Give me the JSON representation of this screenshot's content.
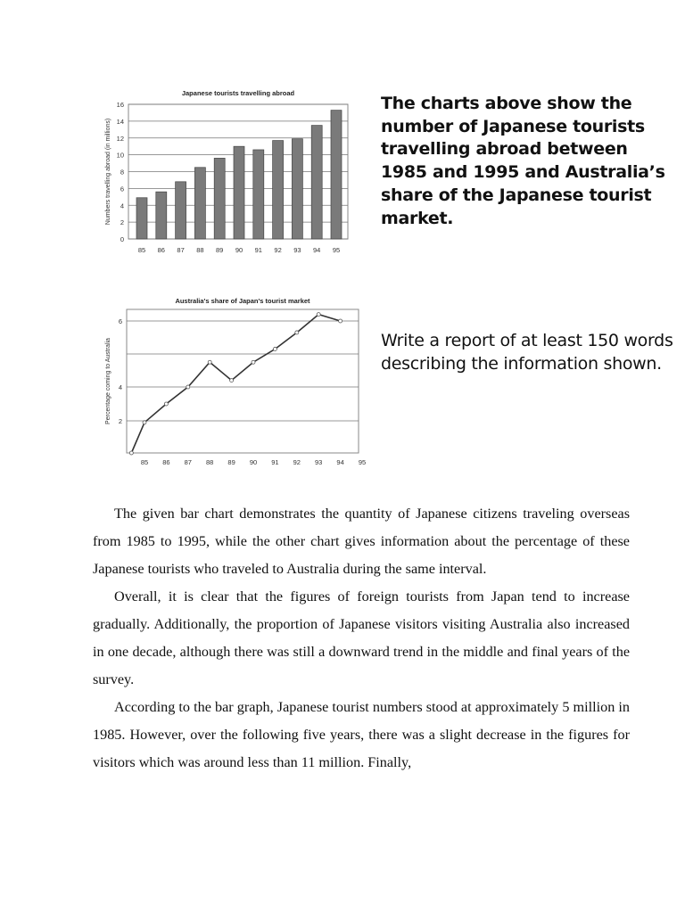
{
  "chart_data": [
    {
      "type": "bar",
      "title": "Japanese tourists travelling abroad",
      "xlabel": "",
      "ylabel": "Numbers travelling abroad (in millions)",
      "categories": [
        "85",
        "86",
        "87",
        "88",
        "89",
        "90",
        "91",
        "92",
        "93",
        "94",
        "95"
      ],
      "values": [
        4.9,
        5.6,
        6.8,
        8.5,
        9.6,
        11.0,
        10.6,
        11.7,
        11.9,
        13.5,
        15.3
      ],
      "ylim": [
        0,
        16
      ],
      "yticks": [
        "0",
        "2",
        "4",
        "6",
        "8",
        "10",
        "12",
        "14",
        "16"
      ],
      "grid": true,
      "colors": {
        "bar": "#7a7a7a"
      }
    },
    {
      "type": "line",
      "title": "Australia's share of Japan's tourist market",
      "xlabel": "",
      "ylabel": "Percentage coming to Australia",
      "x_ticks": [
        "85",
        "86",
        "87",
        "88",
        "89",
        "90",
        "91",
        "92",
        "93",
        "94",
        "95"
      ],
      "x": [
        84.4,
        85,
        86,
        87,
        88,
        89,
        90,
        91,
        92,
        93,
        94
      ],
      "y": [
        1.0,
        1.95,
        3.0,
        4.0,
        4.75,
        4.2,
        4.75,
        5.15,
        5.65,
        6.2,
        6.0
      ],
      "yticks": [
        "2",
        "4",
        "6"
      ],
      "grid": true
    }
  ],
  "task": {
    "heading": "The charts above show the number of Japanese tourists travelling abroad between 1985 and 1995 and Australia’s share of the Japanese tourist market.",
    "instruction": "Write a report of at least 150 words describing the information shown."
  },
  "essay": {
    "paragraphs": [
      "The given bar chart demonstrates the quantity of Japanese citizens traveling overseas from 1985 to 1995, while the other chart gives information about the percentage of these Japanese tourists who traveled to Australia during the same interval.",
      "Overall, it is clear that the figures of foreign tourists from Japan tend to increase gradually. Additionally, the proportion of Japanese visitors visiting Australia also increased in one decade, although there was still a downward trend in the middle and final years of the survey.",
      "According to the bar graph, Japanese tourist numbers stood at approximately 5 million in 1985.  However, over the following five years, there was a slight decrease in the figures for visitors which was around less than 11 million. Finally,"
    ]
  }
}
